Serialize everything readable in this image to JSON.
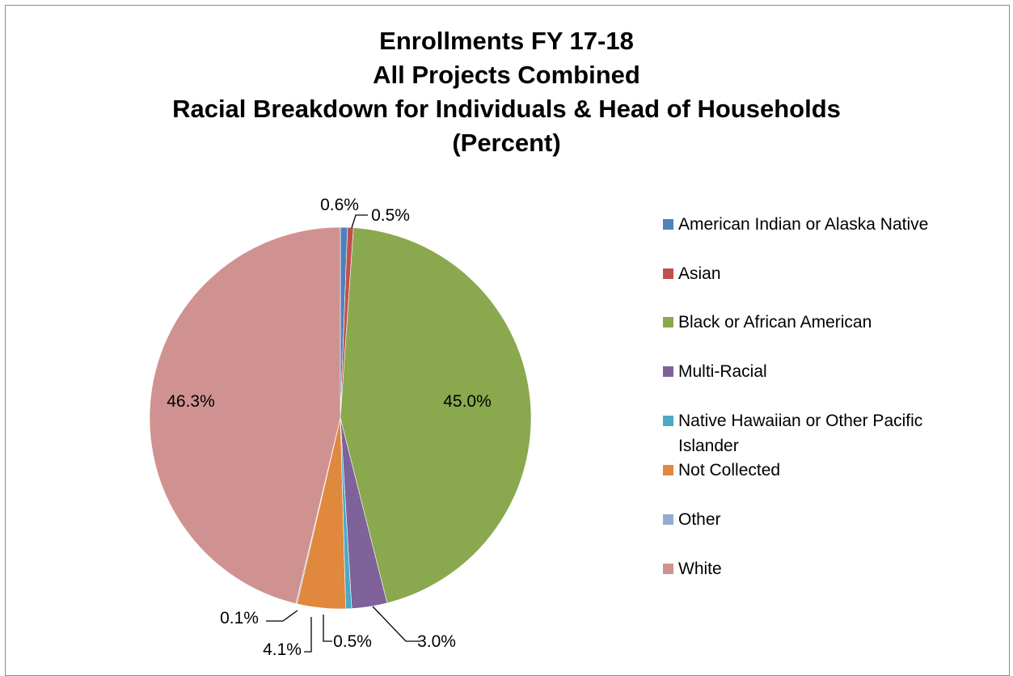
{
  "chart_data": {
    "type": "pie",
    "title_lines": [
      "Enrollments FY 17-18",
      "All Projects Combined",
      "Racial Breakdown for Individuals & Head of Households",
      "(Percent)"
    ],
    "slices": [
      {
        "name": "American Indian or Alaska Native",
        "value": 0.6,
        "label": "0.6%",
        "color": "#4f81bd"
      },
      {
        "name": "Asian",
        "value": 0.5,
        "label": "0.5%",
        "color": "#c0504d"
      },
      {
        "name": "Black or African American",
        "value": 45.0,
        "label": "45.0%",
        "color": "#8aa84e"
      },
      {
        "name": "Multi-Racial",
        "value": 3.0,
        "label": "3.0%",
        "color": "#7f629a"
      },
      {
        "name": "Native Hawaiian or Other Pacific Islander",
        "value": 0.5,
        "label": "0.5%",
        "color": "#4aaac5"
      },
      {
        "name": "Not Collected",
        "value": 4.1,
        "label": "4.1%",
        "color": "#e0883e"
      },
      {
        "name": "Other",
        "value": 0.1,
        "label": "0.1%",
        "color": "#94acd2"
      },
      {
        "name": "White",
        "value": 46.3,
        "label": "46.3%",
        "color": "#d09291"
      }
    ],
    "legend_position": "right"
  }
}
